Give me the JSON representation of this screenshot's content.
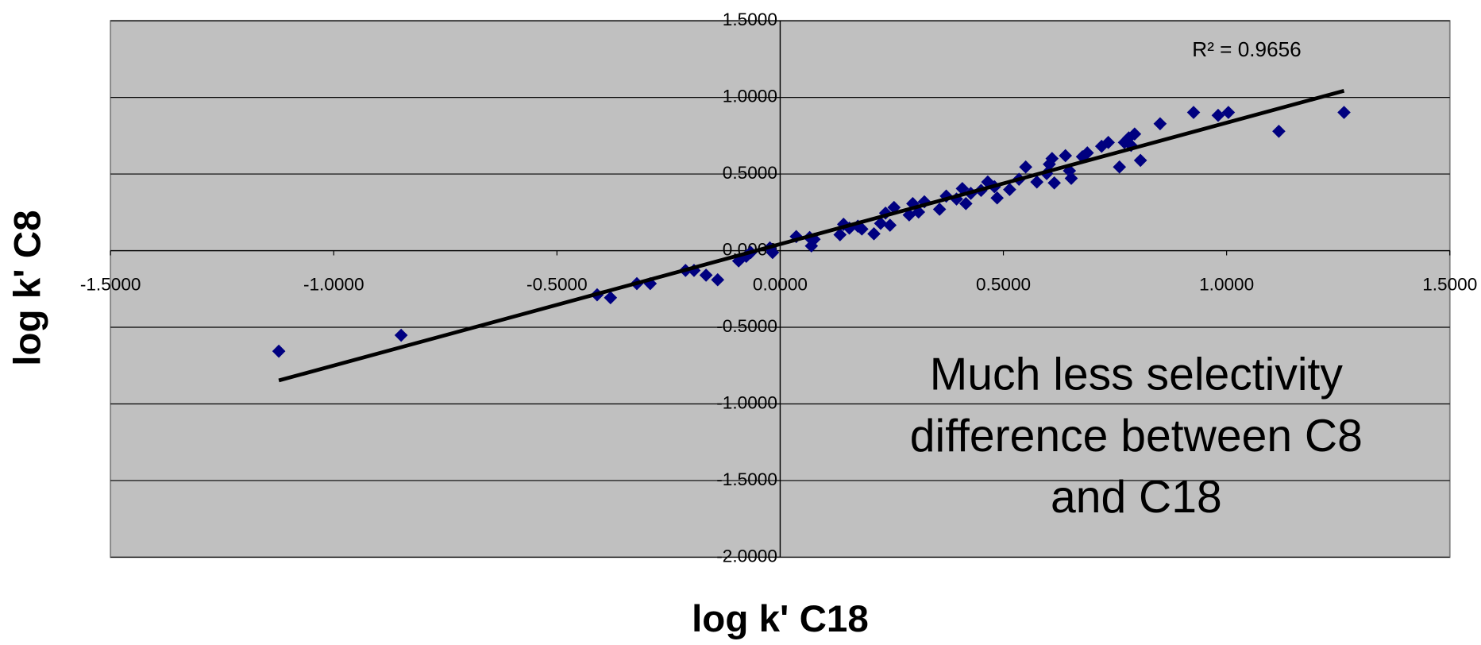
{
  "chart_data": {
    "type": "scatter",
    "x_label": "log k' C18",
    "y_label": "log k' C8",
    "x": [
      -1.123,
      -0.849,
      -0.41,
      -0.38,
      -0.321,
      -0.291,
      -0.212,
      -0.193,
      -0.166,
      -0.14,
      -0.093,
      -0.076,
      -0.066,
      -0.023,
      -0.017,
      0.036,
      0.066,
      0.07,
      0.076,
      0.134,
      0.142,
      0.155,
      0.174,
      0.183,
      0.21,
      0.225,
      0.236,
      0.246,
      0.255,
      0.289,
      0.297,
      0.31,
      0.323,
      0.357,
      0.372,
      0.395,
      0.408,
      0.416,
      0.427,
      0.45,
      0.465,
      0.48,
      0.486,
      0.514,
      0.535,
      0.55,
      0.575,
      0.597,
      0.603,
      0.609,
      0.614,
      0.639,
      0.648,
      0.652,
      0.677,
      0.688,
      0.72,
      0.735,
      0.76,
      0.771,
      0.781,
      0.786,
      0.794,
      0.807,
      0.851,
      0.926,
      0.981,
      1.004,
      1.117,
      1.263
    ],
    "values": [
      -0.656,
      -0.552,
      -0.288,
      -0.307,
      -0.215,
      -0.215,
      -0.129,
      -0.129,
      -0.16,
      -0.19,
      -0.067,
      -0.037,
      -0.012,
      0.018,
      -0.012,
      0.092,
      0.086,
      0.031,
      0.074,
      0.104,
      0.172,
      0.147,
      0.16,
      0.141,
      0.11,
      0.178,
      0.245,
      0.166,
      0.282,
      0.233,
      0.307,
      0.252,
      0.319,
      0.27,
      0.356,
      0.337,
      0.405,
      0.307,
      0.374,
      0.393,
      0.448,
      0.417,
      0.344,
      0.399,
      0.466,
      0.546,
      0.448,
      0.503,
      0.564,
      0.601,
      0.442,
      0.62,
      0.521,
      0.472,
      0.613,
      0.638,
      0.681,
      0.706,
      0.546,
      0.706,
      0.736,
      0.687,
      0.761,
      0.589,
      0.828,
      0.902,
      0.883,
      0.902,
      0.779,
      0.902
    ],
    "color": "#000080",
    "trendline": {
      "x": [
        -1.123,
        1.263
      ],
      "y": [
        -0.847,
        1.043
      ],
      "color": "#000000"
    },
    "r_squared": "R² = 0.9656",
    "annotation": [
      "Much less selectivity",
      "difference between C8",
      "and C18"
    ],
    "xlim": [
      -1.5,
      1.5
    ],
    "xticks": [
      {
        "value": -1.5,
        "label": "-1.5000"
      },
      {
        "value": -1,
        "label": "-1.0000"
      },
      {
        "value": -0.5,
        "label": "-0.5000"
      },
      {
        "value": 0,
        "label": "0.0000"
      },
      {
        "value": 0.5,
        "label": "0.5000"
      },
      {
        "value": 1,
        "label": "1.0000"
      },
      {
        "value": 1.5,
        "label": "1.5000"
      }
    ],
    "ylim": [
      -2,
      1.5
    ],
    "yticks": [
      {
        "value": -2,
        "label": "-2.0000"
      },
      {
        "value": -1.5,
        "label": "-1.5000"
      },
      {
        "value": -1,
        "label": "-1.0000"
      },
      {
        "value": -0.5,
        "label": "-0.5000"
      },
      {
        "value": 0,
        "label": "0.0000"
      },
      {
        "value": 0.5,
        "label": "0.5000"
      },
      {
        "value": 1,
        "label": "1.0000"
      },
      {
        "value": 1.5,
        "label": "1.5000"
      }
    ],
    "grid": true
  }
}
